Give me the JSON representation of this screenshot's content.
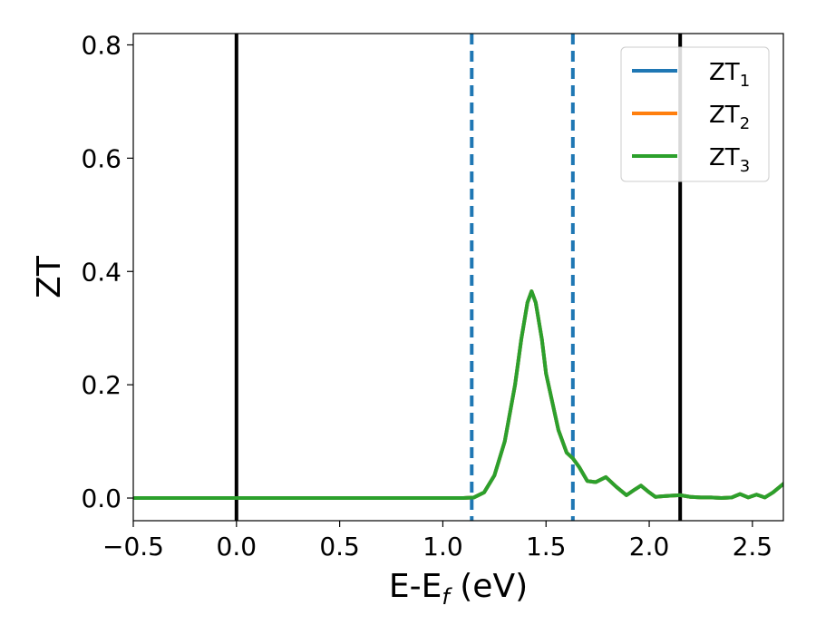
{
  "chart_data": {
    "type": "line",
    "title": "",
    "xlabel": {
      "main": "E-E",
      "sub": "f",
      "suffix": " (eV)"
    },
    "ylabel": "ZT",
    "xlim": [
      -0.5,
      2.65
    ],
    "ylim": [
      -0.04,
      0.82
    ],
    "xticks": [
      -0.5,
      0.0,
      0.5,
      1.0,
      1.5,
      2.0,
      2.5
    ],
    "xtick_labels": [
      "−0.5",
      "0.0",
      "0.5",
      "1.0",
      "1.5",
      "2.0",
      "2.5"
    ],
    "yticks": [
      0.0,
      0.2,
      0.4,
      0.6,
      0.8
    ],
    "ytick_labels": [
      "0.0",
      "0.2",
      "0.4",
      "0.6",
      "0.8"
    ],
    "grid": false,
    "legend_position": "top-right",
    "vlines_solid": [
      0.0,
      2.15
    ],
    "vlines_dashed": [
      1.14,
      1.63
    ],
    "series": [
      {
        "name": "ZT",
        "sub": "1",
        "color": "#1f77b4",
        "x": [
          -0.5,
          0.0,
          0.5,
          1.0,
          1.1,
          1.15,
          1.2,
          1.25,
          1.3,
          1.35,
          1.38,
          1.41,
          1.43,
          1.45,
          1.48,
          1.5,
          1.53,
          1.56,
          1.6,
          1.63,
          1.66,
          1.7,
          1.74,
          1.79,
          1.84,
          1.89,
          1.93,
          1.96,
          2.0,
          2.03,
          2.06,
          2.1,
          2.15,
          2.2,
          2.25,
          2.3,
          2.35,
          2.4,
          2.44,
          2.48,
          2.52,
          2.56,
          2.6,
          2.65
        ],
        "y": [
          0.0,
          0.0,
          0.0,
          0.0,
          0.0,
          0.001,
          0.01,
          0.04,
          0.1,
          0.2,
          0.28,
          0.345,
          0.365,
          0.345,
          0.28,
          0.22,
          0.17,
          0.12,
          0.08,
          0.07,
          0.055,
          0.03,
          0.028,
          0.037,
          0.02,
          0.005,
          0.015,
          0.022,
          0.01,
          0.002,
          0.003,
          0.004,
          0.005,
          0.002,
          0.001,
          0.001,
          0.0,
          0.001,
          0.007,
          0.001,
          0.006,
          0.001,
          0.01,
          0.025
        ]
      },
      {
        "name": "ZT",
        "sub": "2",
        "color": "#ff7f0e",
        "x": [
          -0.5,
          0.0,
          0.5,
          1.0,
          1.1,
          1.15,
          1.2,
          1.25,
          1.3,
          1.35,
          1.38,
          1.41,
          1.43,
          1.45,
          1.48,
          1.5,
          1.53,
          1.56,
          1.6,
          1.63,
          1.66,
          1.7,
          1.74,
          1.79,
          1.84,
          1.89,
          1.93,
          1.96,
          2.0,
          2.03,
          2.06,
          2.1,
          2.15,
          2.2,
          2.25,
          2.3,
          2.35,
          2.4,
          2.44,
          2.48,
          2.52,
          2.56,
          2.6,
          2.65
        ],
        "y": [
          0.0,
          0.0,
          0.0,
          0.0,
          0.0,
          0.001,
          0.01,
          0.04,
          0.1,
          0.2,
          0.28,
          0.345,
          0.365,
          0.345,
          0.28,
          0.22,
          0.17,
          0.12,
          0.08,
          0.07,
          0.055,
          0.03,
          0.028,
          0.037,
          0.02,
          0.005,
          0.015,
          0.022,
          0.01,
          0.002,
          0.003,
          0.004,
          0.005,
          0.002,
          0.001,
          0.001,
          0.0,
          0.001,
          0.007,
          0.001,
          0.006,
          0.001,
          0.01,
          0.025
        ]
      },
      {
        "name": "ZT",
        "sub": "3",
        "color": "#2ca02c",
        "x": [
          -0.5,
          0.0,
          0.5,
          1.0,
          1.1,
          1.15,
          1.2,
          1.25,
          1.3,
          1.35,
          1.38,
          1.41,
          1.43,
          1.45,
          1.48,
          1.5,
          1.53,
          1.56,
          1.6,
          1.63,
          1.66,
          1.7,
          1.74,
          1.79,
          1.84,
          1.89,
          1.93,
          1.96,
          2.0,
          2.03,
          2.06,
          2.1,
          2.15,
          2.2,
          2.25,
          2.3,
          2.35,
          2.4,
          2.44,
          2.48,
          2.52,
          2.56,
          2.6,
          2.65
        ],
        "y": [
          0.0,
          0.0,
          0.0,
          0.0,
          0.0,
          0.001,
          0.01,
          0.04,
          0.1,
          0.2,
          0.28,
          0.345,
          0.365,
          0.345,
          0.28,
          0.22,
          0.17,
          0.12,
          0.08,
          0.07,
          0.055,
          0.03,
          0.028,
          0.037,
          0.02,
          0.005,
          0.015,
          0.022,
          0.01,
          0.002,
          0.003,
          0.004,
          0.005,
          0.002,
          0.001,
          0.001,
          0.0,
          0.001,
          0.007,
          0.001,
          0.006,
          0.001,
          0.01,
          0.025
        ]
      }
    ],
    "colors": {
      "solid_vline": "#000000",
      "dashed_vline": "#1f77b4",
      "axes": "#000000"
    }
  }
}
